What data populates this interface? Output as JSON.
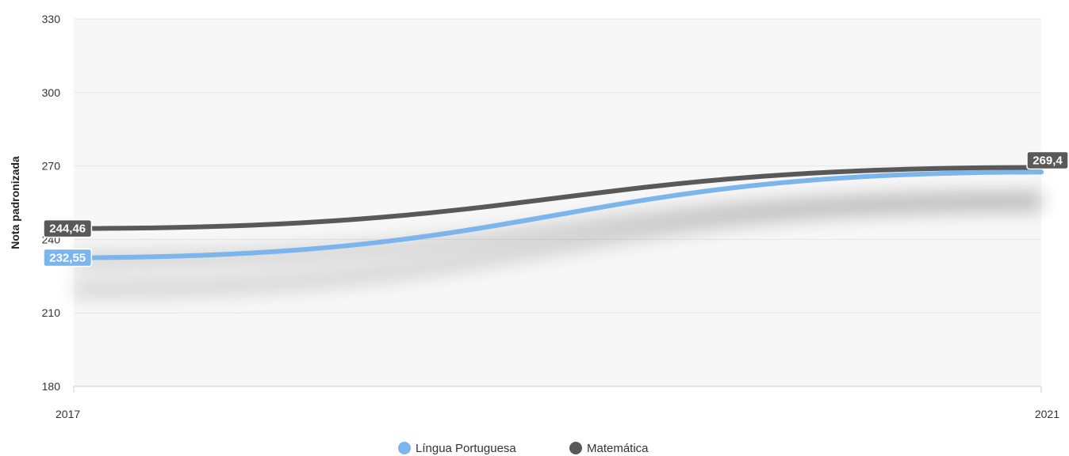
{
  "chart_data": {
    "type": "line",
    "x": [
      "2017",
      "2021"
    ],
    "series": [
      {
        "name": "Língua Portuguesa",
        "values": [
          232.55,
          267.5
        ],
        "labels": [
          "232,55",
          ""
        ],
        "color": "#7cb5ec"
      },
      {
        "name": "Matemática",
        "values": [
          244.46,
          269.4
        ],
        "labels": [
          "244,46",
          "269,4"
        ],
        "color": "#595959"
      }
    ],
    "ylabel": "Nota padronizada",
    "yticks": [
      "180",
      "210",
      "240",
      "270",
      "300",
      "330"
    ],
    "ylim": [
      180,
      330
    ],
    "grid": true,
    "legend": "bottom-center",
    "plot_band_color": "#f7f7f7",
    "grid_color": "#e6e6e6"
  }
}
